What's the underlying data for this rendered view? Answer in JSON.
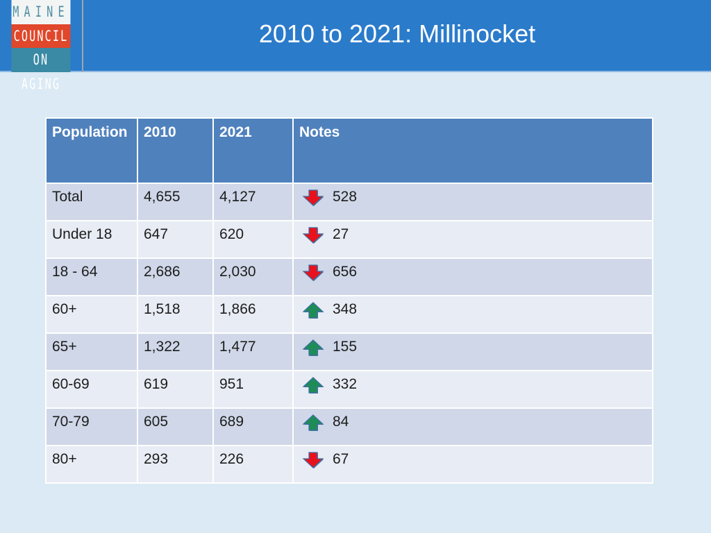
{
  "logo": {
    "line1": "MAINE",
    "line2": "COUNCIL",
    "line3": "ON AGING"
  },
  "title": "2010 to 2021: Millinocket",
  "colors": {
    "header": "#2b7bcb",
    "table_header": "#4f81bd",
    "row_odd": "#cfd7e8",
    "row_even": "#e8ecf4",
    "arrow_down": "#e8121d",
    "arrow_up": "#1e8c57"
  },
  "table": {
    "headers": [
      "Population",
      "2010",
      "2021",
      "Notes"
    ],
    "rows": [
      {
        "label": "Total",
        "y2010": "4,655",
        "y2021": "4,127",
        "direction": "down",
        "icon": "down-arrow-icon",
        "change": "528"
      },
      {
        "label": "Under 18",
        "y2010": "647",
        "y2021": "620",
        "direction": "down",
        "icon": "down-arrow-icon",
        "change": "27"
      },
      {
        "label": "18 - 64",
        "y2010": "2,686",
        "y2021": "2,030",
        "direction": "down",
        "icon": "down-arrow-icon",
        "change": "656"
      },
      {
        "label": "60+",
        "y2010": "1,518",
        "y2021": "1,866",
        "direction": "up",
        "icon": "up-arrow-icon",
        "change": "348"
      },
      {
        "label": "65+",
        "y2010": "1,322",
        "y2021": "1,477",
        "direction": "up",
        "icon": "up-arrow-icon",
        "change": "155"
      },
      {
        "label": "60-69",
        "y2010": "619",
        "y2021": "951",
        "direction": "up",
        "icon": "up-arrow-icon",
        "change": "332"
      },
      {
        "label": "70-79",
        "y2010": "605",
        "y2021": "689",
        "direction": "up",
        "icon": "up-arrow-icon",
        "change": "84"
      },
      {
        "label": "80+",
        "y2010": "293",
        "y2021": "226",
        "direction": "down",
        "icon": "down-arrow-icon",
        "change": "67"
      }
    ]
  }
}
